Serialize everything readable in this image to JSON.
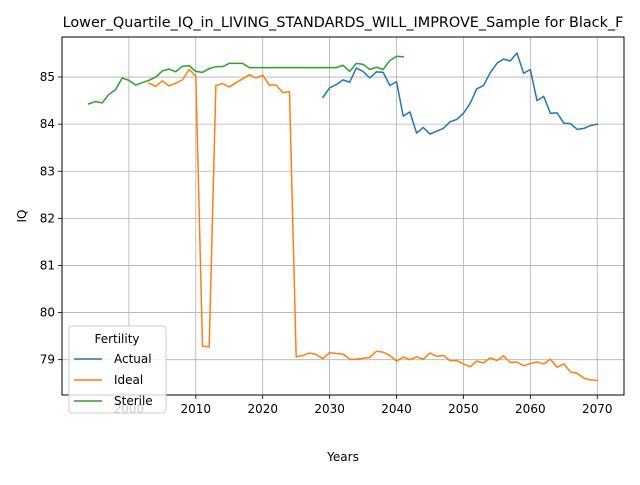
{
  "chart_data": {
    "type": "line",
    "title": "Lower_Quartile_IQ_in_LIVING_STANDARDS_WILL_IMPROVE_Sample for Black_F",
    "xlabel": "Years",
    "ylabel": "IQ",
    "xlim": [
      1990,
      2074
    ],
    "ylim": [
      78.25,
      85.85
    ],
    "xticks": [
      2000,
      2010,
      2020,
      2030,
      2040,
      2050,
      2060,
      2070
    ],
    "yticks": [
      79,
      80,
      81,
      82,
      83,
      84,
      85
    ],
    "grid": true,
    "legend": {
      "title": "Fertility",
      "position": "lower-left"
    },
    "series": [
      {
        "name": "Actual",
        "color": "#1f77b4",
        "points": [
          [
            2029,
            84.57
          ],
          [
            2030,
            84.77
          ],
          [
            2031,
            84.84
          ],
          [
            2032,
            84.94
          ],
          [
            2033,
            84.89
          ],
          [
            2034,
            85.19
          ],
          [
            2035,
            85.12
          ],
          [
            2036,
            84.98
          ],
          [
            2037,
            85.11
          ],
          [
            2038,
            85.1
          ],
          [
            2039,
            84.82
          ],
          [
            2040,
            84.9
          ],
          [
            2041,
            84.17
          ],
          [
            2042,
            84.26
          ],
          [
            2043,
            83.81
          ],
          [
            2044,
            83.93
          ],
          [
            2045,
            83.79
          ],
          [
            2046,
            83.85
          ],
          [
            2047,
            83.91
          ],
          [
            2048,
            84.05
          ],
          [
            2049,
            84.1
          ],
          [
            2050,
            84.23
          ],
          [
            2051,
            84.44
          ],
          [
            2052,
            84.75
          ],
          [
            2053,
            84.82
          ],
          [
            2054,
            85.09
          ],
          [
            2055,
            85.29
          ],
          [
            2056,
            85.38
          ],
          [
            2057,
            85.34
          ],
          [
            2058,
            85.51
          ],
          [
            2059,
            85.08
          ],
          [
            2060,
            85.16
          ],
          [
            2061,
            84.5
          ],
          [
            2062,
            84.59
          ],
          [
            2063,
            84.23
          ],
          [
            2064,
            84.24
          ],
          [
            2065,
            84.02
          ],
          [
            2066,
            84.01
          ],
          [
            2067,
            83.89
          ],
          [
            2068,
            83.91
          ],
          [
            2069,
            83.97
          ],
          [
            2070,
            84.0
          ]
        ]
      },
      {
        "name": "Ideal",
        "color": "#ff7f0e",
        "points": [
          [
            2003,
            84.87
          ],
          [
            2004,
            84.8
          ],
          [
            2005,
            84.92
          ],
          [
            2006,
            84.81
          ],
          [
            2007,
            84.87
          ],
          [
            2008,
            84.94
          ],
          [
            2009,
            85.16
          ],
          [
            2010,
            85.02
          ],
          [
            2011,
            79.29
          ],
          [
            2012,
            79.27
          ],
          [
            2013,
            84.82
          ],
          [
            2014,
            84.86
          ],
          [
            2015,
            84.79
          ],
          [
            2016,
            84.88
          ],
          [
            2017,
            84.96
          ],
          [
            2018,
            85.05
          ],
          [
            2019,
            84.98
          ],
          [
            2020,
            85.04
          ],
          [
            2021,
            84.83
          ],
          [
            2022,
            84.83
          ],
          [
            2023,
            84.67
          ],
          [
            2024,
            84.69
          ],
          [
            2025,
            79.06
          ],
          [
            2026,
            79.09
          ],
          [
            2027,
            79.14
          ],
          [
            2028,
            79.11
          ],
          [
            2029,
            79.02
          ],
          [
            2030,
            79.15
          ],
          [
            2031,
            79.13
          ],
          [
            2032,
            79.12
          ],
          [
            2033,
            79.01
          ],
          [
            2034,
            79.01
          ],
          [
            2035,
            79.03
          ],
          [
            2036,
            79.05
          ],
          [
            2037,
            79.18
          ],
          [
            2038,
            79.16
          ],
          [
            2039,
            79.09
          ],
          [
            2040,
            78.97
          ],
          [
            2041,
            79.06
          ],
          [
            2042,
            79.0
          ],
          [
            2043,
            79.06
          ],
          [
            2044,
            79.01
          ],
          [
            2045,
            79.14
          ],
          [
            2046,
            79.07
          ],
          [
            2047,
            79.09
          ],
          [
            2048,
            78.98
          ],
          [
            2049,
            78.98
          ],
          [
            2050,
            78.91
          ],
          [
            2051,
            78.85
          ],
          [
            2052,
            78.97
          ],
          [
            2053,
            78.93
          ],
          [
            2054,
            79.04
          ],
          [
            2055,
            78.98
          ],
          [
            2056,
            79.08
          ],
          [
            2057,
            78.94
          ],
          [
            2058,
            78.95
          ],
          [
            2059,
            78.87
          ],
          [
            2060,
            78.92
          ],
          [
            2061,
            78.95
          ],
          [
            2062,
            78.91
          ],
          [
            2063,
            79.01
          ],
          [
            2064,
            78.84
          ],
          [
            2065,
            78.91
          ],
          [
            2066,
            78.74
          ],
          [
            2067,
            78.71
          ],
          [
            2068,
            78.61
          ],
          [
            2069,
            78.57
          ],
          [
            2070,
            78.56
          ]
        ]
      },
      {
        "name": "Sterile",
        "color": "#2ca02c",
        "points": [
          [
            1994,
            84.43
          ],
          [
            1995,
            84.48
          ],
          [
            1996,
            84.45
          ],
          [
            1997,
            84.63
          ],
          [
            1998,
            84.73
          ],
          [
            1999,
            84.98
          ],
          [
            2000,
            84.93
          ],
          [
            2001,
            84.83
          ],
          [
            2002,
            84.88
          ],
          [
            2003,
            84.93
          ],
          [
            2004,
            85.0
          ],
          [
            2005,
            85.13
          ],
          [
            2006,
            85.17
          ],
          [
            2007,
            85.11
          ],
          [
            2008,
            85.23
          ],
          [
            2009,
            85.24
          ],
          [
            2010,
            85.12
          ],
          [
            2011,
            85.1
          ],
          [
            2012,
            85.18
          ],
          [
            2013,
            85.22
          ],
          [
            2014,
            85.22
          ],
          [
            2015,
            85.29
          ],
          [
            2016,
            85.29
          ],
          [
            2017,
            85.29
          ],
          [
            2018,
            85.2
          ],
          [
            2019,
            85.2
          ],
          [
            2020,
            85.2
          ],
          [
            2021,
            85.2
          ],
          [
            2022,
            85.2
          ],
          [
            2023,
            85.2
          ],
          [
            2024,
            85.2
          ],
          [
            2025,
            85.2
          ],
          [
            2026,
            85.2
          ],
          [
            2027,
            85.2
          ],
          [
            2028,
            85.2
          ],
          [
            2029,
            85.2
          ],
          [
            2030,
            85.2
          ],
          [
            2031,
            85.2
          ],
          [
            2032,
            85.25
          ],
          [
            2033,
            85.12
          ],
          [
            2034,
            85.29
          ],
          [
            2035,
            85.27
          ],
          [
            2036,
            85.16
          ],
          [
            2037,
            85.21
          ],
          [
            2038,
            85.16
          ],
          [
            2039,
            85.35
          ],
          [
            2040,
            85.44
          ],
          [
            2041,
            85.43
          ]
        ]
      }
    ]
  }
}
